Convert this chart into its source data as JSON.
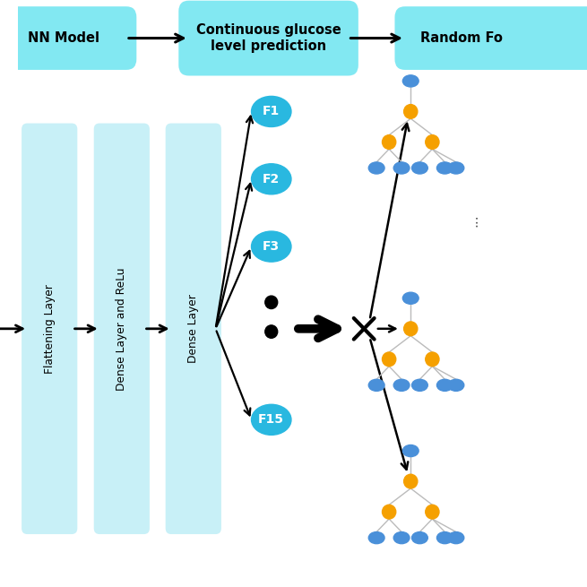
{
  "bg_color": "#ffffff",
  "light_blue_box": "#c8f0f7",
  "oval_color": "#29b8e0",
  "oval_text_color": "#ffffff",
  "orange_color": "#f5a000",
  "tree_node_blue": "#4a90d9",
  "tree_edge_color": "#bbbbbb",
  "top_box_color": "#82e8f2",
  "box_labels": [
    "Flattening Layer",
    "Dense Layer and ReLu",
    "Dense Layer"
  ],
  "feature_labels": [
    "F1",
    "F2",
    "F3",
    "F15"
  ],
  "top_label_nn": "NN Model",
  "top_label_cg": "Continuous glucose\nlevel prediction",
  "top_label_rf": "Random Fo"
}
